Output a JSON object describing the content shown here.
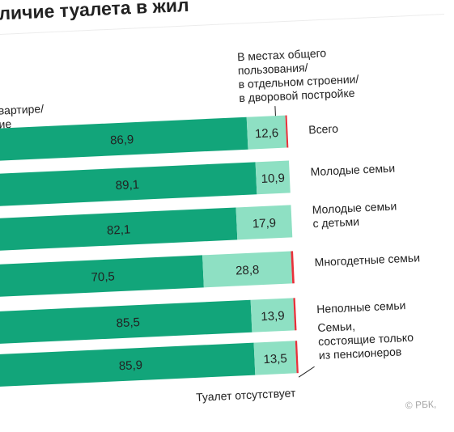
{
  "chart_data": {
    "type": "bar",
    "stacked": true,
    "orientation": "horizontal",
    "title": "личие туалета в жил",
    "legend": {
      "in_apartment": "вартире/ ие",
      "shared": "В местах общего пользования/ в отдельном строении/ в дворовой постройке",
      "absent": "Туалет отсутствует"
    },
    "categories": [
      "Всего",
      "Молодые семьи",
      "Молодые семьи с детьми",
      "Многодетные семьи",
      "Неполные семьи",
      "Семьи, состоящие только из пенсионеров"
    ],
    "category_lines": [
      [
        "Всего"
      ],
      [
        "Молодые семьи"
      ],
      [
        "Молодые семьи",
        "с детьми"
      ],
      [
        "Многодетные семьи"
      ],
      [
        "Неполные семьи"
      ],
      [
        "Семьи,",
        "состоящие только",
        "из пенсионеров"
      ]
    ],
    "series": [
      {
        "name": "вартире/ ие",
        "values": [
          86.9,
          89.1,
          82.1,
          70.5,
          85.5,
          85.9
        ]
      },
      {
        "name": "В местах общего пользования/ в отдельном строении/ в дворовой постройке",
        "values": [
          12.6,
          10.9,
          17.9,
          28.8,
          13.9,
          13.5
        ]
      },
      {
        "name": "Туалет отсутствует",
        "values": [
          0.5,
          0,
          0,
          0.7,
          0.6,
          0.6
        ]
      }
    ],
    "value_labels": {
      "in_apartment": [
        "86,9",
        "89,1",
        "82,1",
        "70,5",
        "85,5",
        "85,9"
      ],
      "shared": [
        "12,6",
        "10,9",
        "17,9",
        "28,8",
        "13,9",
        "13,5"
      ]
    },
    "xlim": [
      0,
      100
    ],
    "colors": {
      "in_apartment": "#12a57a",
      "shared": "#8ee0c3",
      "absent": "#e8303a",
      "text": "#222222",
      "source": "#a7a7a7"
    }
  },
  "title_lines": [
    "личие туалета в жил"
  ],
  "legend_shared_lines": [
    "В местах общего",
    "пользования/",
    "в отдельном строении/",
    "в дворовой постройке"
  ],
  "legend_apartment_lines": [
    "вартире/",
    "ие"
  ],
  "source": "© РБК,"
}
